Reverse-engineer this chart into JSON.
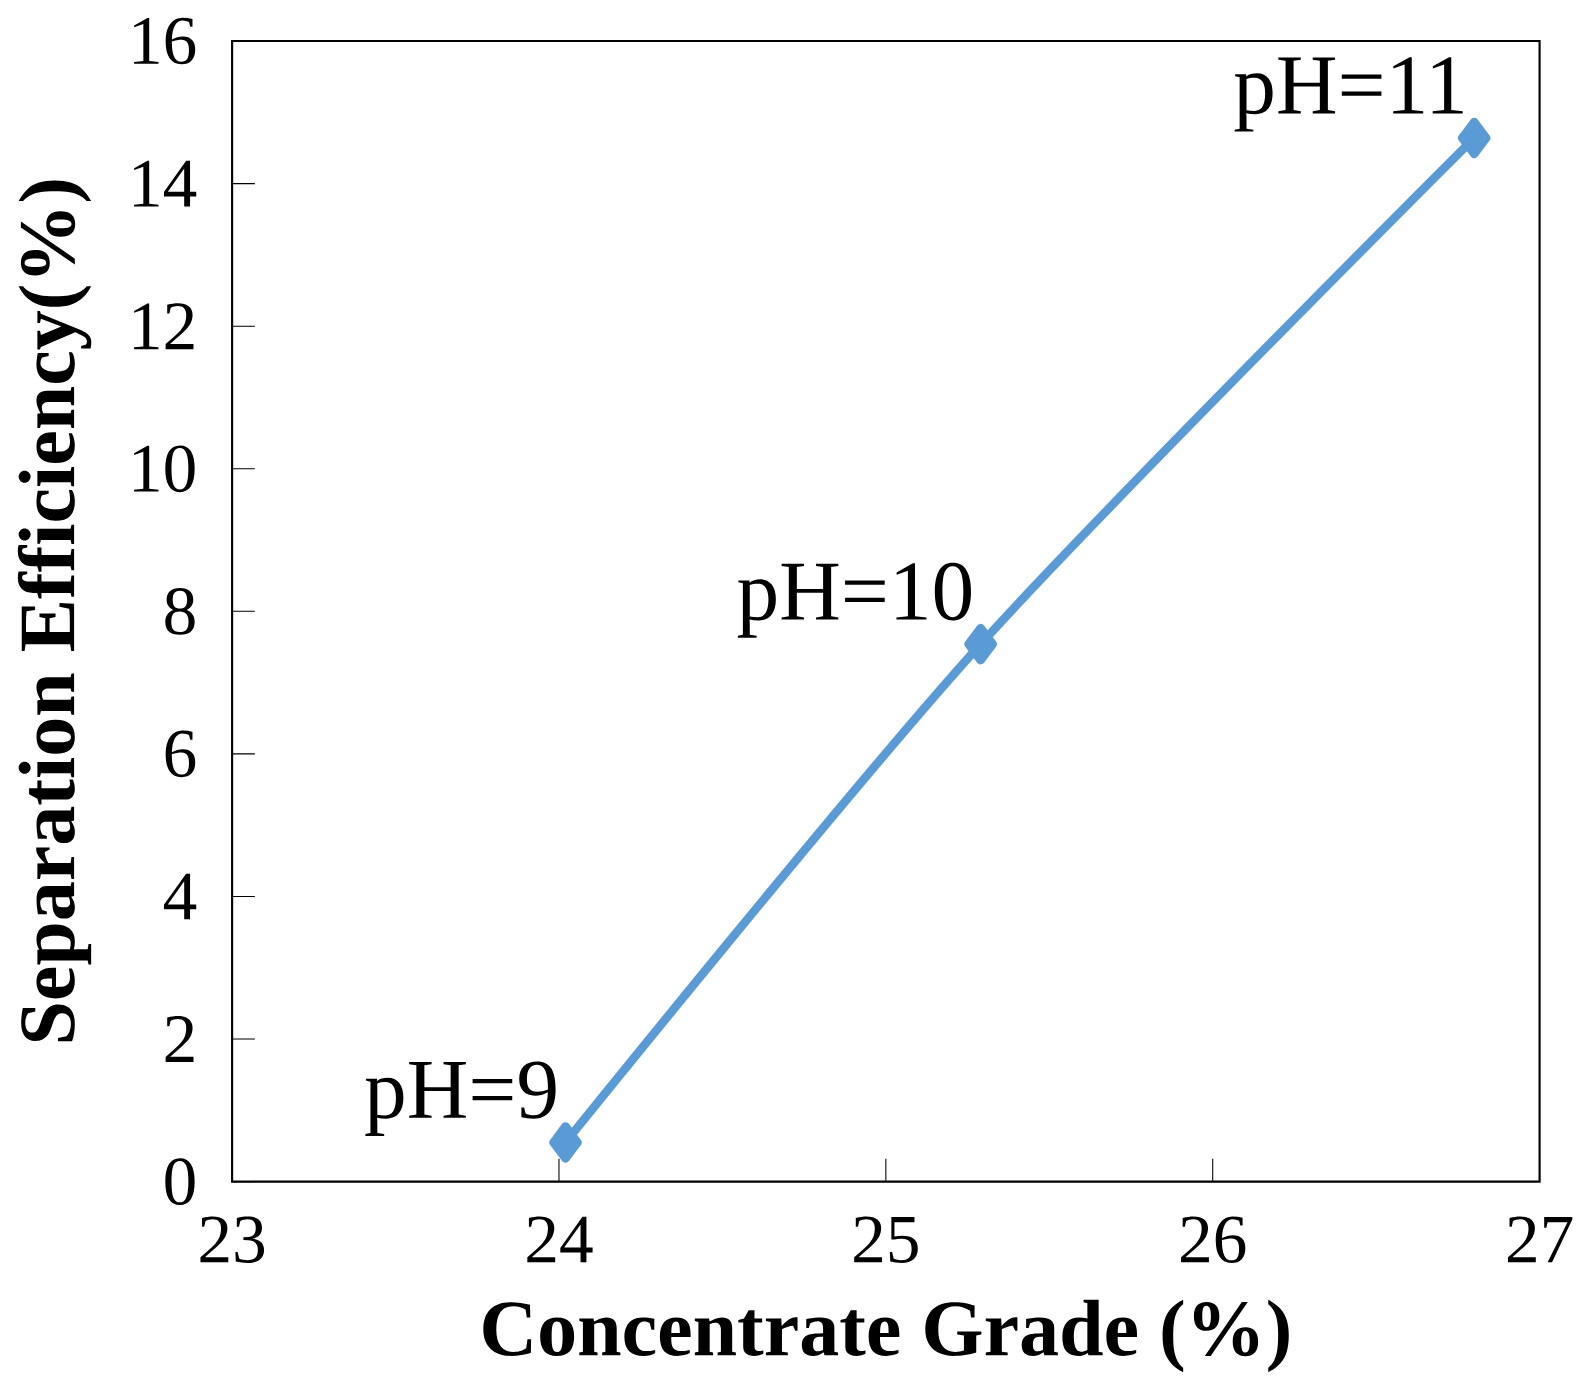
{
  "chart_data": {
    "type": "line",
    "xlabel": "Concentrate Grade (%)",
    "ylabel": "Separation Efficiency(%)",
    "x": [
      24.02,
      25.29,
      26.8
    ],
    "series": [
      {
        "color": "#5b9bd5",
        "values": [
          0.55,
          7.54,
          14.64
        ]
      }
    ],
    "xlim": [
      23,
      27
    ],
    "xticks": [
      23,
      24,
      25,
      26,
      27
    ],
    "ylim": [
      0,
      16
    ],
    "yticks": [
      0,
      2,
      4,
      6,
      8,
      10,
      12,
      14,
      16
    ],
    "marker": "diamond",
    "line_style": "solid",
    "annotations": [
      {
        "text": "pH=9",
        "x": 24.02,
        "y": 0.55
      },
      {
        "text": "pH=10",
        "x": 25.29,
        "y": 7.54
      },
      {
        "text": "pH=11",
        "x": 26.8,
        "y": 14.64
      }
    ]
  }
}
